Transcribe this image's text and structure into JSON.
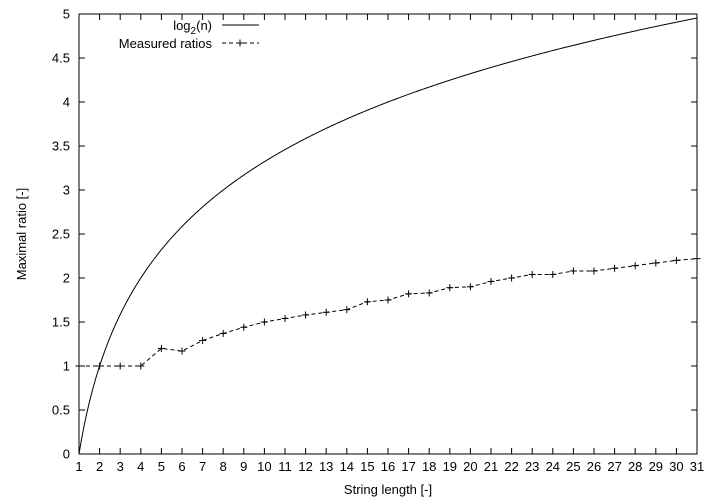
{
  "chart_data": {
    "type": "line",
    "xlabel": "String length [-]",
    "ylabel": "Maximal ratio [-]",
    "xlim": [
      1,
      31
    ],
    "ylim": [
      0,
      5
    ],
    "x_ticks": [
      1,
      2,
      3,
      4,
      5,
      6,
      7,
      8,
      9,
      10,
      11,
      12,
      13,
      14,
      15,
      16,
      17,
      18,
      19,
      20,
      21,
      22,
      23,
      24,
      25,
      26,
      27,
      28,
      29,
      30,
      31
    ],
    "y_ticks": [
      0,
      0.5,
      1,
      1.5,
      2,
      2.5,
      3,
      3.5,
      4,
      4.5,
      5
    ],
    "grid": false,
    "legend_position": "top-left",
    "series": [
      {
        "name": "log2(n)",
        "style": "solid",
        "function": "log2",
        "x": [
          1,
          2,
          3,
          4,
          5,
          6,
          7,
          8,
          9,
          10,
          11,
          12,
          13,
          14,
          15,
          16,
          17,
          18,
          19,
          20,
          21,
          22,
          23,
          24,
          25,
          26,
          27,
          28,
          29,
          30,
          31
        ],
        "values": [
          0,
          1,
          1.585,
          2,
          2.322,
          2.585,
          2.807,
          3,
          3.17,
          3.322,
          3.459,
          3.585,
          3.7,
          3.807,
          3.907,
          4,
          4.087,
          4.17,
          4.248,
          4.322,
          4.392,
          4.459,
          4.524,
          4.585,
          4.644,
          4.7,
          4.755,
          4.807,
          4.858,
          4.907,
          4.954
        ]
      },
      {
        "name": "Measured ratios",
        "style": "dashed",
        "marker": "plus",
        "x": [
          1,
          2,
          3,
          4,
          5,
          6,
          7,
          8,
          9,
          10,
          11,
          12,
          13,
          14,
          15,
          16,
          17,
          18,
          19,
          20,
          21,
          22,
          23,
          24,
          25,
          26,
          27,
          28,
          29,
          30,
          31
        ],
        "values": [
          1,
          1,
          1,
          1,
          1.2,
          1.17,
          1.29,
          1.37,
          1.44,
          1.5,
          1.54,
          1.58,
          1.61,
          1.64,
          1.73,
          1.75,
          1.82,
          1.83,
          1.89,
          1.9,
          1.96,
          2,
          2.04,
          2.04,
          2.08,
          2.08,
          2.11,
          2.14,
          2.17,
          2.2,
          2.22
        ]
      }
    ]
  }
}
